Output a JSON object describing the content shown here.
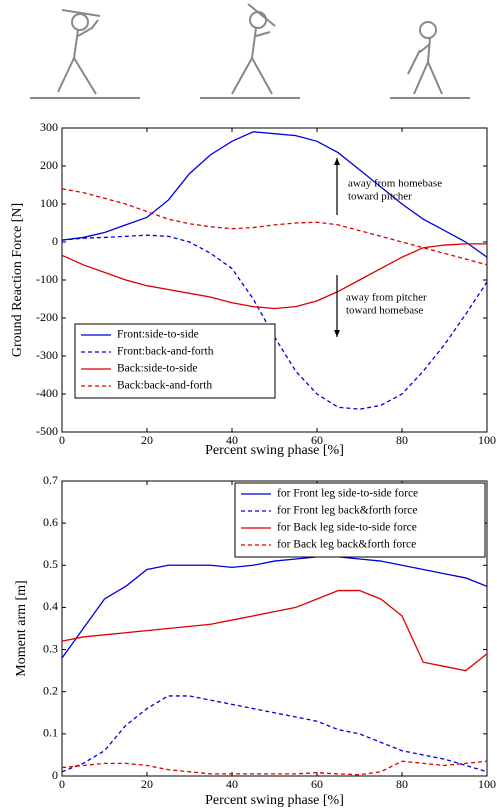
{
  "chart_data": [
    {
      "type": "line",
      "ylabel": "Ground Reaction Force [N]",
      "xlabel": "Percent swing phase [%]",
      "x": [
        0,
        5,
        10,
        15,
        20,
        25,
        30,
        35,
        40,
        45,
        50,
        55,
        60,
        65,
        70,
        75,
        80,
        85,
        90,
        95,
        100
      ],
      "xlim": [
        0,
        100
      ],
      "xticks": [
        0,
        20,
        40,
        60,
        80,
        100
      ],
      "ylim": [
        -500,
        300
      ],
      "yticks": [
        -500,
        -400,
        -300,
        -200,
        -100,
        0,
        100,
        200,
        300
      ],
      "legend": "lower left",
      "annotations": [
        "away from homebase",
        "toward pitcher",
        "away from pitcher",
        "toward homebase"
      ],
      "series": [
        {
          "name": "Front:side-to-side",
          "color": "#0000dd",
          "linestyle": "solid",
          "values": [
            5,
            12,
            25,
            45,
            65,
            110,
            180,
            230,
            265,
            290,
            285,
            280,
            265,
            235,
            190,
            145,
            100,
            60,
            30,
            0,
            -40
          ]
        },
        {
          "name": "Front:back-and-forth",
          "color": "#0000dd",
          "linestyle": "dashed",
          "values": [
            5,
            10,
            12,
            15,
            18,
            15,
            0,
            -30,
            -70,
            -150,
            -250,
            -340,
            -400,
            -435,
            -440,
            -430,
            -400,
            -340,
            -270,
            -190,
            -105
          ]
        },
        {
          "name": "Back:side-to-side",
          "color": "#dd0000",
          "linestyle": "solid",
          "values": [
            -35,
            -60,
            -80,
            -100,
            -115,
            -125,
            -135,
            -145,
            -160,
            -170,
            -175,
            -170,
            -155,
            -130,
            -100,
            -70,
            -40,
            -15,
            -8,
            -5,
            -5
          ]
        },
        {
          "name": "Back:back-and-forth",
          "color": "#dd0000",
          "linestyle": "dashed",
          "values": [
            140,
            130,
            115,
            100,
            80,
            60,
            48,
            40,
            35,
            38,
            45,
            50,
            52,
            45,
            30,
            15,
            0,
            -15,
            -30,
            -45,
            -60
          ]
        }
      ]
    },
    {
      "type": "line",
      "ylabel": "Moment arm [m]",
      "xlabel": "Percent swing phase [%]",
      "x": [
        0,
        5,
        10,
        15,
        20,
        25,
        30,
        35,
        40,
        45,
        50,
        55,
        60,
        65,
        70,
        75,
        80,
        85,
        90,
        95,
        100
      ],
      "xlim": [
        0,
        100
      ],
      "xticks": [
        0,
        20,
        40,
        60,
        80,
        100
      ],
      "ylim": [
        0,
        0.7
      ],
      "yticks": [
        0,
        0.1,
        0.2,
        0.3,
        0.4,
        0.5,
        0.6,
        0.7
      ],
      "legend": "upper right",
      "series": [
        {
          "name": "for Front leg side-to-side force",
          "color": "#0000dd",
          "linestyle": "solid",
          "values": [
            0.28,
            0.35,
            0.42,
            0.45,
            0.49,
            0.5,
            0.5,
            0.5,
            0.495,
            0.5,
            0.51,
            0.515,
            0.52,
            0.52,
            0.515,
            0.51,
            0.5,
            0.49,
            0.48,
            0.47,
            0.45
          ]
        },
        {
          "name": "for Front leg back&forth force",
          "color": "#0000dd",
          "linestyle": "dashed",
          "values": [
            0.01,
            0.03,
            0.06,
            0.12,
            0.16,
            0.19,
            0.19,
            0.18,
            0.17,
            0.16,
            0.15,
            0.14,
            0.13,
            0.11,
            0.1,
            0.08,
            0.06,
            0.05,
            0.04,
            0.025,
            0.01
          ]
        },
        {
          "name": "for Back leg side-to-side force",
          "color": "#dd0000",
          "linestyle": "solid",
          "values": [
            0.32,
            0.33,
            0.335,
            0.34,
            0.345,
            0.35,
            0.355,
            0.36,
            0.37,
            0.38,
            0.39,
            0.4,
            0.42,
            0.44,
            0.44,
            0.42,
            0.38,
            0.27,
            0.26,
            0.25,
            0.29
          ]
        },
        {
          "name": "for Back leg back&forth force",
          "color": "#dd0000",
          "linestyle": "dashed",
          "values": [
            0.02,
            0.025,
            0.03,
            0.03,
            0.025,
            0.015,
            0.01,
            0.005,
            0.005,
            0.005,
            0.005,
            0.005,
            0.008,
            0.005,
            0.003,
            0.01,
            0.035,
            0.03,
            0.025,
            0.03,
            0.035
          ]
        }
      ]
    }
  ]
}
